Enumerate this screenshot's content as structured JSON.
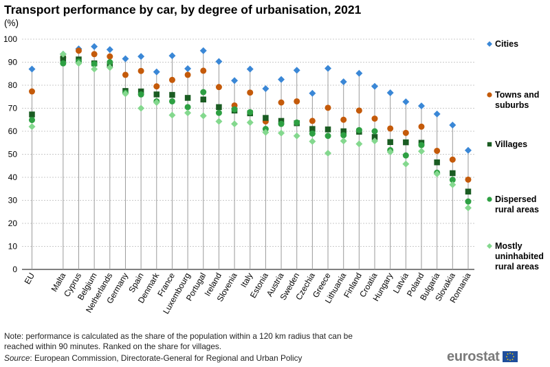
{
  "title": "Transport performance by car, by degree of urbanisation, 2021",
  "subtitle": "(%)",
  "note": "Note: performance is calculated as the share of the population within a 120 km radius that can be reached within 90 minutes. Ranked on the share for villages.",
  "source_label": "Source",
  "source_text": ": European Commission, Directorate-General for Regional and Urban Policy",
  "logo_text": "eurostat",
  "chart_data": {
    "type": "scatter",
    "title": "Transport performance by car, by degree of urbanisation, 2021",
    "ylabel": "(%)",
    "xlabel": "",
    "ylim": [
      0,
      100
    ],
    "yticks": [
      0,
      10,
      20,
      30,
      40,
      50,
      60,
      70,
      80,
      90,
      100
    ],
    "grid": true,
    "legend_position": "right",
    "categories": [
      "EU",
      "",
      "Malta",
      "Cyprus",
      "Belgium",
      "Netherlands",
      "Germany",
      "Spain",
      "Denmark",
      "France",
      "Luxembourg",
      "Portugal",
      "Ireland",
      "Slovenia",
      "Italy",
      "Estonia",
      "Austria",
      "Sweden",
      "Czechia",
      "Greece",
      "Lithuania",
      "Finland",
      "Croatia",
      "Hungary",
      "Latvia",
      "Poland",
      "Bulgaria",
      "Slovakia",
      "Romania"
    ],
    "series": [
      {
        "name": "Cities",
        "color": "#3a87d6",
        "marker": "diamond",
        "values": [
          87,
          null,
          93.5,
          95.8,
          96.8,
          95.5,
          91.5,
          92.5,
          85.8,
          92.8,
          87.2,
          95,
          90.3,
          82,
          87,
          78.5,
          82.5,
          86.5,
          76.5,
          87.3,
          81.5,
          85.2,
          79.5,
          76.7,
          72.8,
          71,
          67.5,
          62.7,
          51.7
        ]
      },
      {
        "name": "Towns and suburbs",
        "color": "#c45a0a",
        "marker": "circle",
        "values": [
          77.3,
          null,
          92,
          95,
          93.5,
          92.5,
          84.5,
          86.2,
          79.5,
          82.3,
          84.5,
          86.3,
          79.2,
          71.2,
          76.8,
          64.3,
          72.5,
          73,
          64.5,
          70.2,
          65,
          69,
          65.5,
          61.2,
          59.3,
          62,
          51.5,
          47.7,
          39
        ]
      },
      {
        "name": "Villages",
        "color": "#1a5c22",
        "marker": "square",
        "values": [
          67.3,
          null,
          91.5,
          91.2,
          89.5,
          89,
          77.5,
          77.3,
          76,
          75.8,
          74.5,
          73.8,
          70.5,
          69,
          67.8,
          65.8,
          64.5,
          63.5,
          61,
          60.8,
          60,
          59.8,
          57.5,
          55.3,
          55.2,
          55,
          46.5,
          41.8,
          33.8
        ]
      },
      {
        "name": "Dispersed rural areas",
        "color": "#2ea043",
        "marker": "circle",
        "values": [
          64.9,
          null,
          89.5,
          90.3,
          89.2,
          90,
          76.7,
          76,
          73,
          73,
          70.5,
          77,
          68,
          69.5,
          68.3,
          61,
          63.2,
          63.8,
          59,
          58,
          58.3,
          60.5,
          60,
          51.8,
          49.5,
          54,
          42,
          38.9,
          29.5
        ]
      },
      {
        "name": "Mostly uninhabited rural areas",
        "color": "#84d88e",
        "marker": "diamond",
        "values": [
          62,
          null,
          93.5,
          89.5,
          87,
          87.7,
          76.3,
          70,
          72.5,
          67,
          68,
          66.7,
          64.3,
          63.2,
          63.8,
          59.5,
          59.2,
          58,
          55.6,
          50.5,
          55.8,
          54.5,
          55.8,
          51,
          45.8,
          51.3,
          41.5,
          36.8,
          26.7
        ]
      }
    ]
  }
}
